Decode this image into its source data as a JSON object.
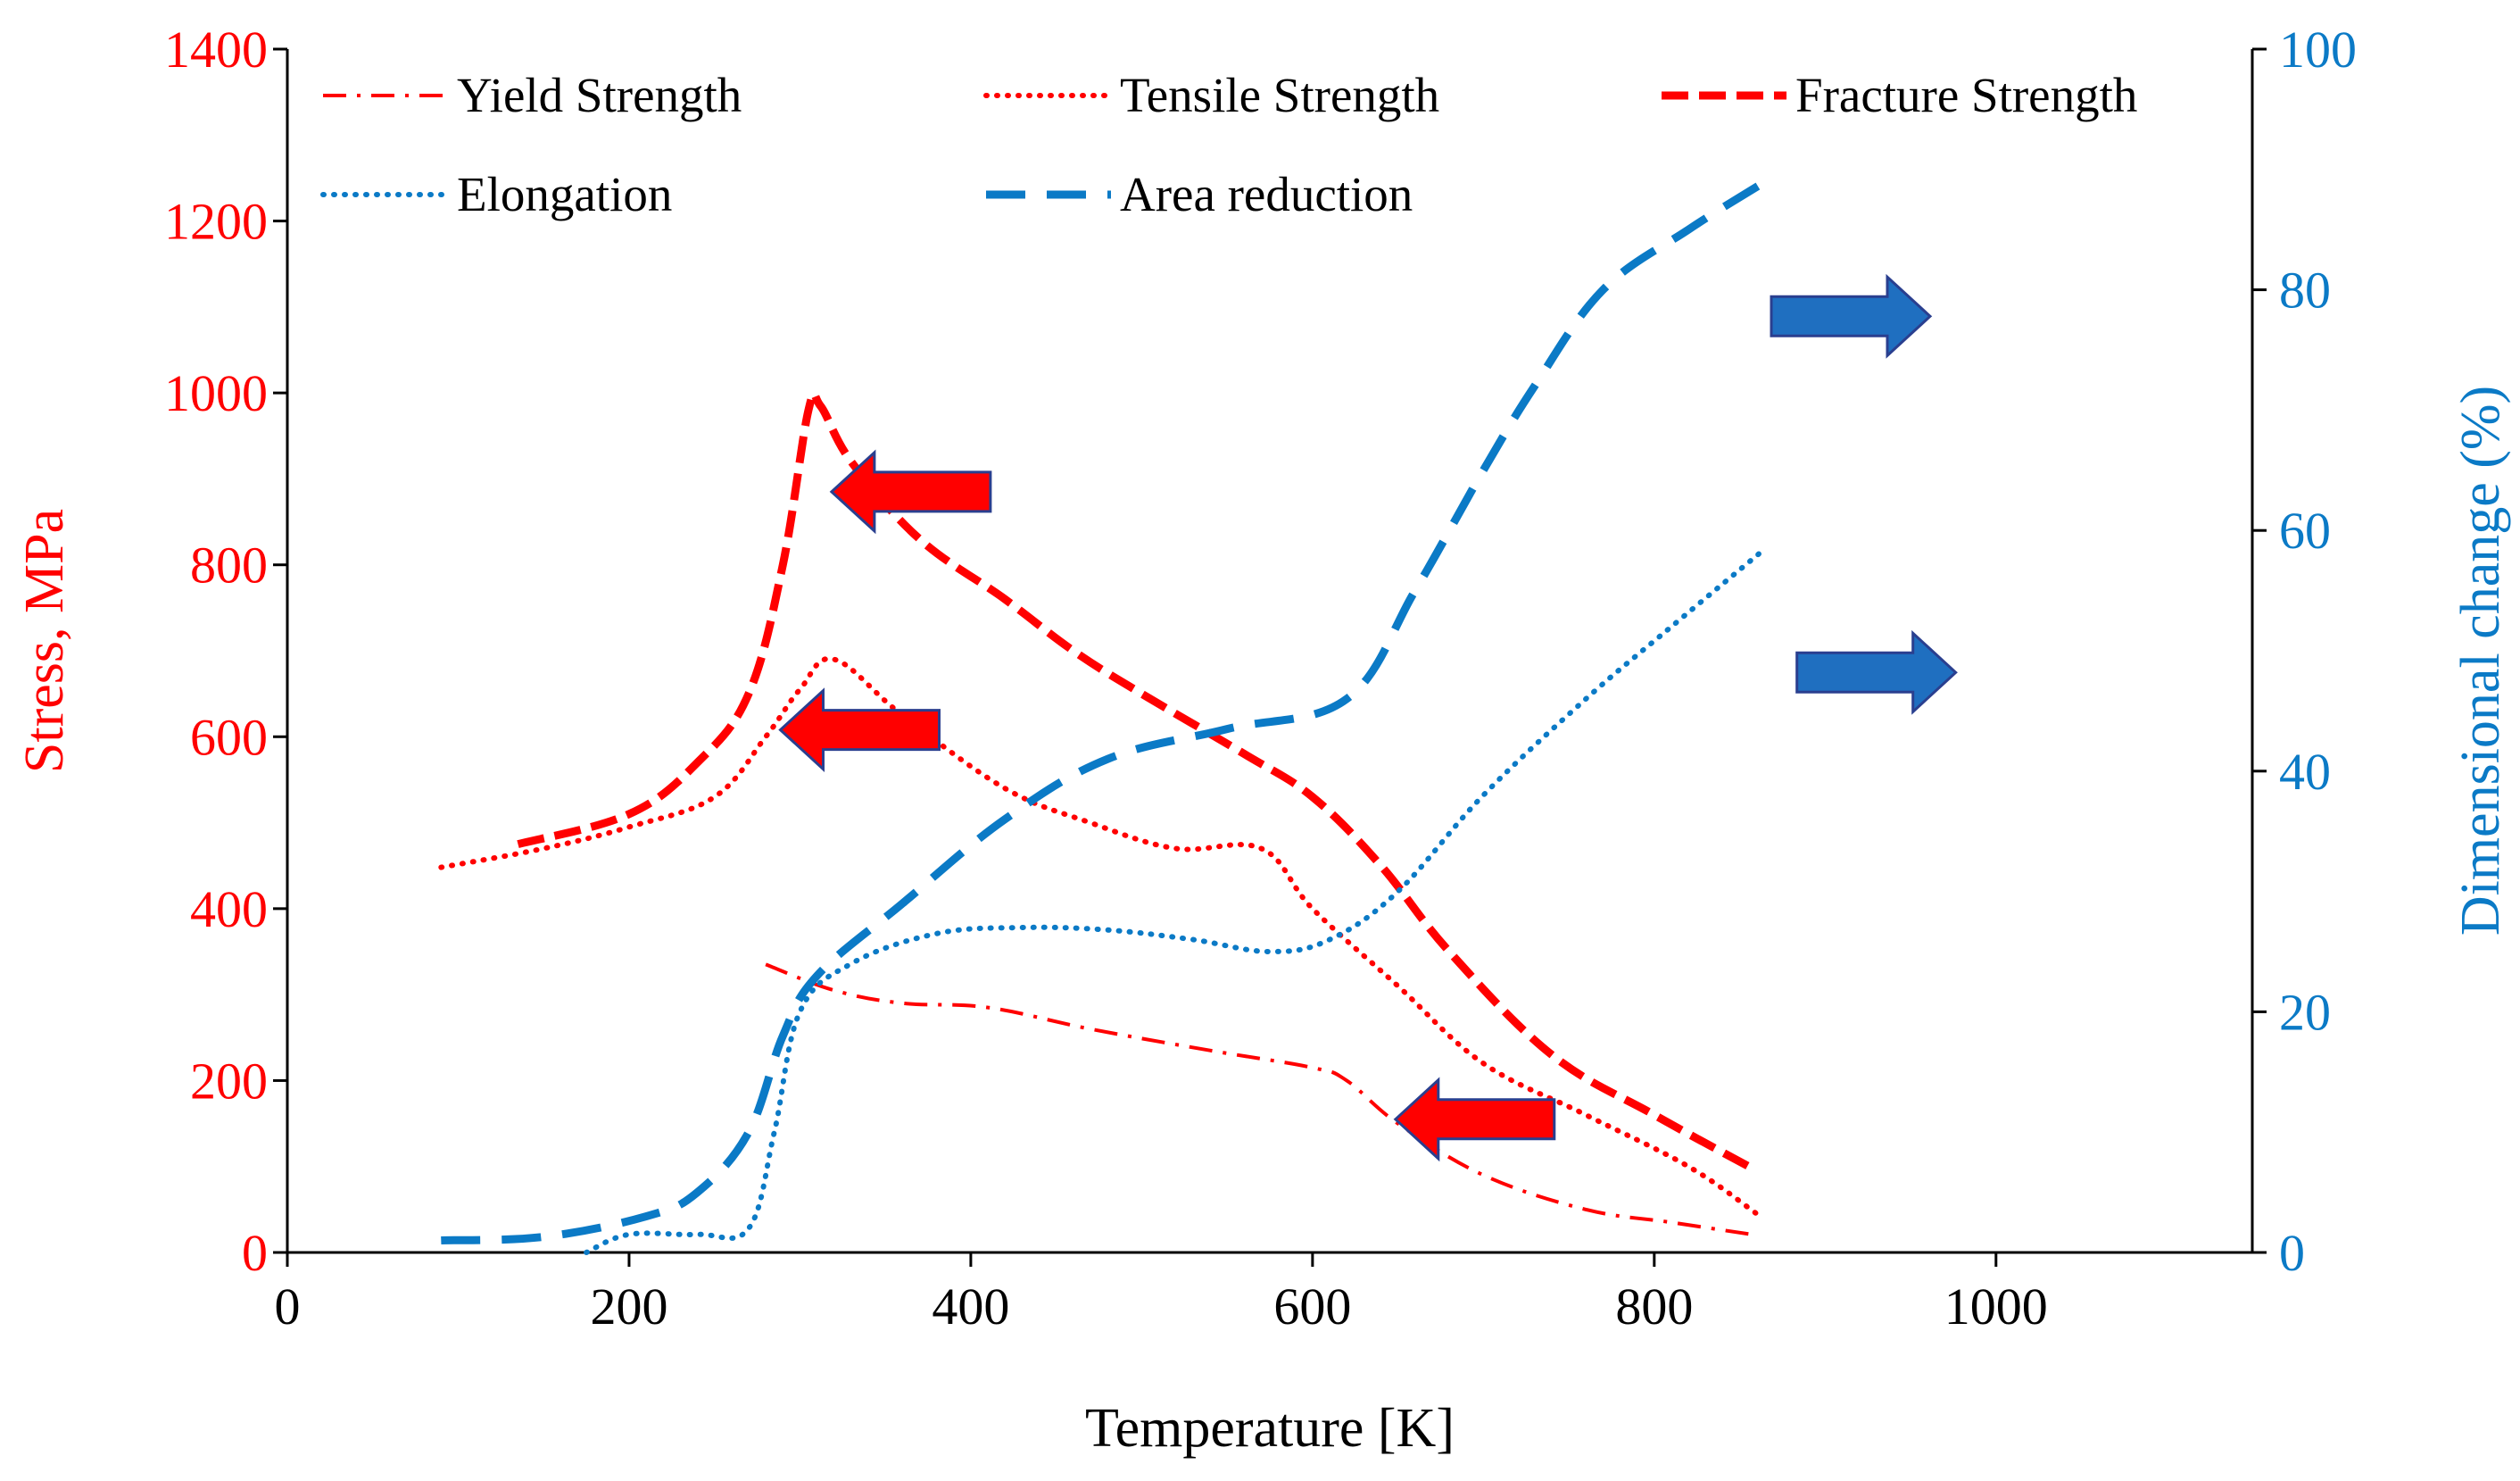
{
  "chart_data": {
    "type": "line",
    "title": "",
    "xlabel": "Temperature [K]",
    "ylabel_left": "Stress, MPa",
    "ylabel_right": "Dimensional change (%)",
    "xlim": [
      0,
      1150
    ],
    "ylim_left": [
      0,
      1400
    ],
    "ylim_right": [
      0,
      100
    ],
    "x_ticks": [
      0,
      200,
      400,
      600,
      800,
      1000
    ],
    "y_left_ticks": [
      0,
      200,
      400,
      600,
      800,
      1000,
      1200,
      1400
    ],
    "y_right_ticks": [
      0,
      20,
      40,
      60,
      80,
      100
    ],
    "grid": false,
    "legend_position": "top",
    "colors": {
      "stress": "#ff0000",
      "dimensional": "#0b7ac6",
      "arrow_blue": "#1f6fc0"
    },
    "series": [
      {
        "name": "Yield Strength",
        "axis": "left",
        "color": "#ff0000",
        "style": "dashdot",
        "x": [
          280,
          320,
          360,
          410,
          470,
          540,
          600,
          620,
          650,
          700,
          760,
          810,
          860
        ],
        "values": [
          335,
          305,
          290,
          285,
          260,
          235,
          215,
          200,
          150,
          90,
          50,
          35,
          20
        ]
      },
      {
        "name": "Tensile Strength",
        "axis": "left",
        "color": "#ff0000",
        "style": "dotted",
        "x": [
          90,
          150,
          200,
          250,
          280,
          300,
          320,
          360,
          420,
          470,
          520,
          570,
          600,
          650,
          700,
          760,
          820,
          860
        ],
        "values": [
          448,
          470,
          495,
          530,
          600,
          655,
          690,
          625,
          540,
          500,
          470,
          470,
          400,
          310,
          220,
          160,
          100,
          45
        ]
      },
      {
        "name": "Fracture Strength",
        "axis": "left",
        "color": "#ff0000",
        "style": "dashed",
        "x": [
          135,
          200,
          240,
          270,
          290,
          305,
          312,
          330,
          370,
          420,
          460,
          500,
          560,
          600,
          640,
          680,
          740,
          800,
          860
        ],
        "values": [
          475,
          510,
          570,
          650,
          800,
          980,
          985,
          920,
          830,
          760,
          700,
          650,
          580,
          530,
          450,
          350,
          230,
          160,
          95
        ]
      },
      {
        "name": "Elongation",
        "axis": "right",
        "color": "#0b7ac6",
        "style": "dotted",
        "x": [
          175,
          200,
          240,
          270,
          285,
          300,
          330,
          380,
          430,
          480,
          530,
          575,
          610,
          650,
          700,
          760,
          810,
          865
        ],
        "values": [
          0,
          1.5,
          1.5,
          2,
          10,
          20,
          24,
          26.5,
          27,
          26.8,
          26,
          25,
          26,
          30,
          38,
          46,
          52,
          58.5
        ]
      },
      {
        "name": "Area reduction",
        "axis": "right",
        "color": "#0b7ac6",
        "style": "dashed",
        "x": [
          90,
          150,
          210,
          240,
          270,
          290,
          310,
          360,
          420,
          480,
          550,
          620,
          660,
          700,
          730,
          770,
          820,
          865
        ],
        "values": [
          1,
          1.3,
          3,
          5,
          10,
          18,
          23,
          29,
          36,
          41,
          43.5,
          46,
          55,
          65,
          72,
          80,
          85,
          89
        ]
      }
    ],
    "annotations": [
      {
        "type": "arrow",
        "direction": "left",
        "color": "#ff0000",
        "at": {
          "x": 365,
          "y_left": 885
        }
      },
      {
        "type": "arrow",
        "direction": "left",
        "color": "#ff0000",
        "at": {
          "x": 335,
          "y_left": 608
        }
      },
      {
        "type": "arrow",
        "direction": "left",
        "color": "#ff0000",
        "at": {
          "x": 695,
          "y_left": 155
        }
      },
      {
        "type": "arrow",
        "direction": "right",
        "color": "#1f6fc0",
        "at": {
          "x": 915,
          "y_right": 77.8
        }
      },
      {
        "type": "arrow",
        "direction": "right",
        "color": "#1f6fc0",
        "at": {
          "x": 930,
          "y_right": 48.2
        }
      }
    ]
  }
}
